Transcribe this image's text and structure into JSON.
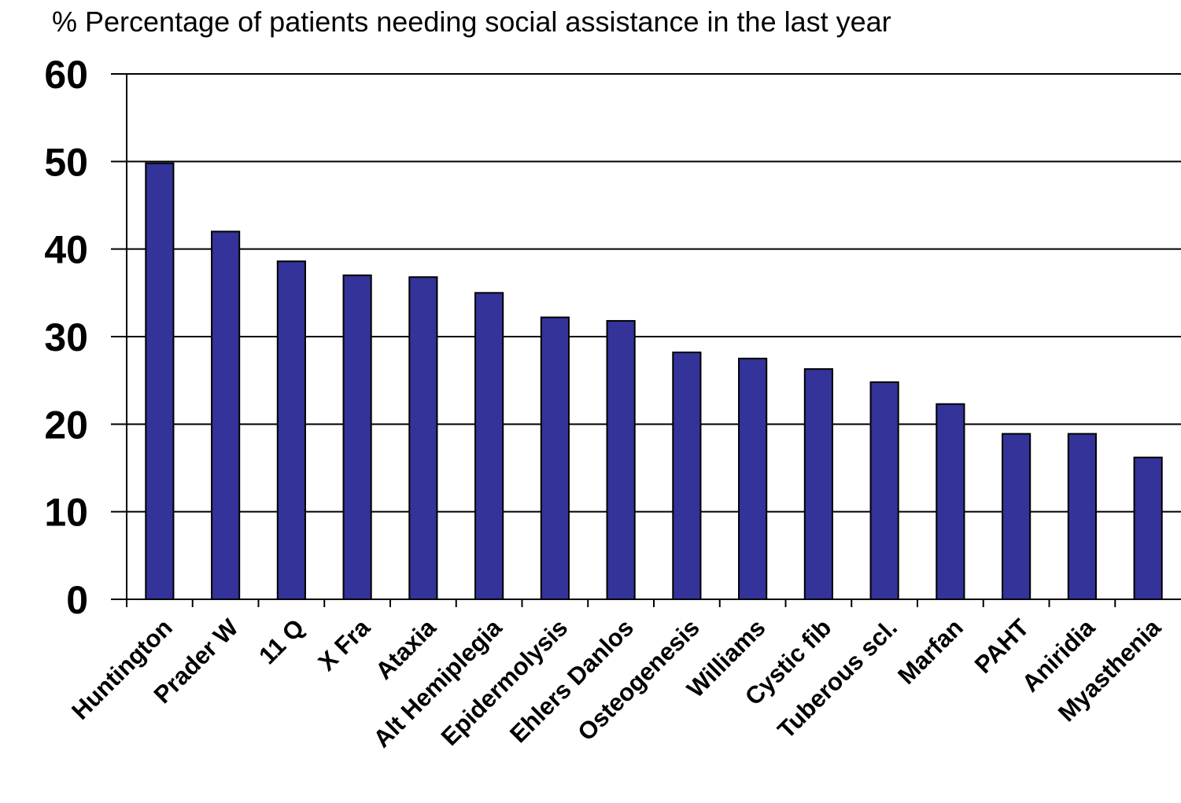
{
  "chart_data": {
    "type": "bar",
    "title": "% Percentage of patients needing social assistance in the last year",
    "xlabel": "",
    "ylabel": "",
    "ylim": [
      0,
      60
    ],
    "yticks": [
      0,
      10,
      20,
      30,
      40,
      50,
      60
    ],
    "grid": true,
    "legend": "none",
    "categories": [
      "Huntington",
      "Prader W",
      "11 Q",
      "X Fra",
      "Ataxia",
      "Alt Hemiplegia",
      "Epidermolysis",
      "Ehlers Danlos",
      "Osteogenesis",
      "Williams",
      "Cystic fib",
      "Tuberous scl.",
      "Marfan",
      "PAHT",
      "Aniridia",
      "Myasthenia"
    ],
    "values": [
      49.8,
      42.0,
      38.6,
      37.0,
      36.8,
      35.0,
      32.2,
      31.8,
      28.2,
      27.5,
      26.3,
      24.8,
      22.3,
      18.9,
      18.9,
      16.2
    ],
    "colors": {
      "bar": "#333399",
      "bar_stroke": "#000000",
      "axis": "#000000",
      "grid": "#000000"
    }
  }
}
